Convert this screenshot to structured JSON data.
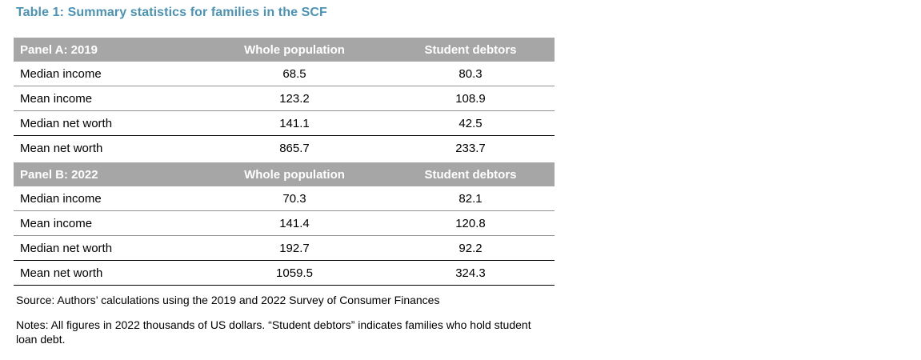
{
  "title": "Table 1: Summary statistics for families in the SCF",
  "colors": {
    "title_accent": "#4b93b5",
    "panel_header_bg": "#a6a6a6",
    "panel_header_text": "#ffffff",
    "row_separator": "#8f8f8f",
    "strong_separator": "#000000"
  },
  "table": {
    "panels": [
      {
        "label": "Panel A: 2019",
        "columns": [
          "Whole population",
          "Student debtors"
        ],
        "rows": [
          {
            "label": "Median income",
            "whole_population": "68.5",
            "student_debtors": "80.3"
          },
          {
            "label": "Mean income",
            "whole_population": "123.2",
            "student_debtors": "108.9"
          },
          {
            "label": "Median net worth",
            "whole_population": "141.1",
            "student_debtors": "42.5"
          },
          {
            "label": "Mean net worth",
            "whole_population": "865.7",
            "student_debtors": "233.7"
          }
        ]
      },
      {
        "label": "Panel B: 2022",
        "columns": [
          "Whole population",
          "Student debtors"
        ],
        "rows": [
          {
            "label": "Median income",
            "whole_population": "70.3",
            "student_debtors": "82.1"
          },
          {
            "label": "Mean income",
            "whole_population": "141.4",
            "student_debtors": "120.8"
          },
          {
            "label": "Median net worth",
            "whole_population": "192.7",
            "student_debtors": "92.2"
          },
          {
            "label": "Mean net worth",
            "whole_population": "1059.5",
            "student_debtors": "324.3"
          }
        ]
      }
    ]
  },
  "footer": {
    "source": "Source: Authors’ calculations using the 2019 and 2022 Survey of Consumer Finances",
    "notes": "Notes: All figures in 2022 thousands of US dollars. “Student debtors” indicates families who hold student loan debt."
  }
}
